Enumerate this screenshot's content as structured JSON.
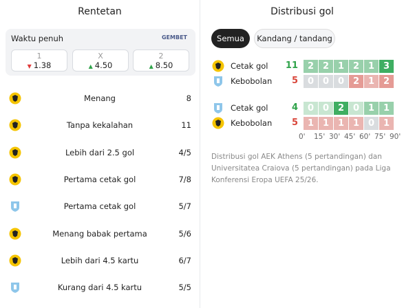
{
  "left": {
    "title": "Rentetan",
    "odds": {
      "label": "Waktu penuh",
      "brand": "GEMBET",
      "options": [
        {
          "key": "1",
          "value": "1.38"
        },
        {
          "key": "X",
          "value": "4.50"
        },
        {
          "key": "2",
          "value": "8.50"
        }
      ]
    },
    "streaks": [
      [
        "Menang",
        "8"
      ],
      [
        "Tanpa kekalahan",
        "11"
      ],
      [
        "Lebih dari 2.5 gol",
        "4/5"
      ],
      [
        "Pertama cetak gol",
        "7/8"
      ],
      [
        "Pertama cetak gol",
        "5/7"
      ],
      [
        "Menang babak pertama",
        "5/6"
      ],
      [
        "Lebih dari 4.5 kartu",
        "6/7"
      ],
      [
        "Kurang dari 4.5 kartu",
        "5/5"
      ]
    ]
  },
  "right": {
    "title": "Distribusi gol",
    "tabs": [
      "Semua",
      "Kandang / tandang"
    ],
    "rows": [
      {
        "label": "Cetak gol",
        "total": "11",
        "cells": [
          "2",
          "2",
          "1",
          "2",
          "1",
          "3"
        ]
      },
      {
        "label": "Kebobolan",
        "total": "5",
        "cells": [
          "0",
          "0",
          "0",
          "2",
          "1",
          "2"
        ]
      },
      {
        "label": "Cetak gol",
        "total": "4",
        "cells": [
          "0",
          "0",
          "2",
          "0",
          "1",
          "1"
        ]
      },
      {
        "label": "Kebobolan",
        "total": "5",
        "cells": [
          "1",
          "1",
          "1",
          "1",
          "0",
          "1"
        ]
      }
    ],
    "times": [
      "0'",
      "15'",
      "30'",
      "45'",
      "60'",
      "75'",
      "90'"
    ],
    "description": "Distribusi gol AEK Athens (5 pertandingan) dan Universitatea Craiova (5 pertandingan) pada Liga Konferensi Eropa UEFA 25/26."
  }
}
